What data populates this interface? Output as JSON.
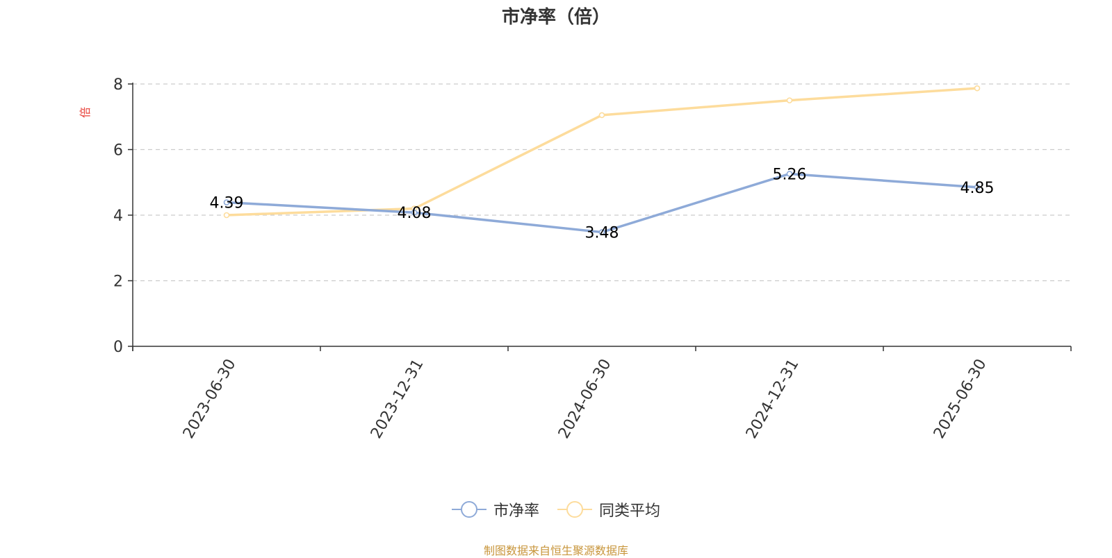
{
  "title": "市净率（倍）",
  "source_note": "制图数据来自恒生聚源数据库",
  "legend": [
    {
      "label": "市净率",
      "color": "#8eaad8"
    },
    {
      "label": "同类平均",
      "color": "#fddc9c"
    }
  ],
  "chart_data": {
    "type": "line",
    "title": "市净率（倍）",
    "ylabel": "倍",
    "xlabel": "",
    "categories": [
      "2023-06-30",
      "2023-12-31",
      "2024-06-30",
      "2024-12-31",
      "2025-06-30"
    ],
    "ylim": [
      0,
      8
    ],
    "yticks": [
      0,
      2,
      4,
      6,
      8
    ],
    "grid": true,
    "legend_position": "bottom",
    "series": [
      {
        "name": "市净率",
        "values": [
          4.39,
          4.08,
          3.48,
          5.26,
          4.85
        ],
        "color": "#8eaad8",
        "show_labels": true
      },
      {
        "name": "同类平均",
        "values": [
          4.0,
          4.2,
          7.05,
          7.5,
          7.87
        ],
        "color": "#fddc9c",
        "show_labels": false
      }
    ]
  }
}
